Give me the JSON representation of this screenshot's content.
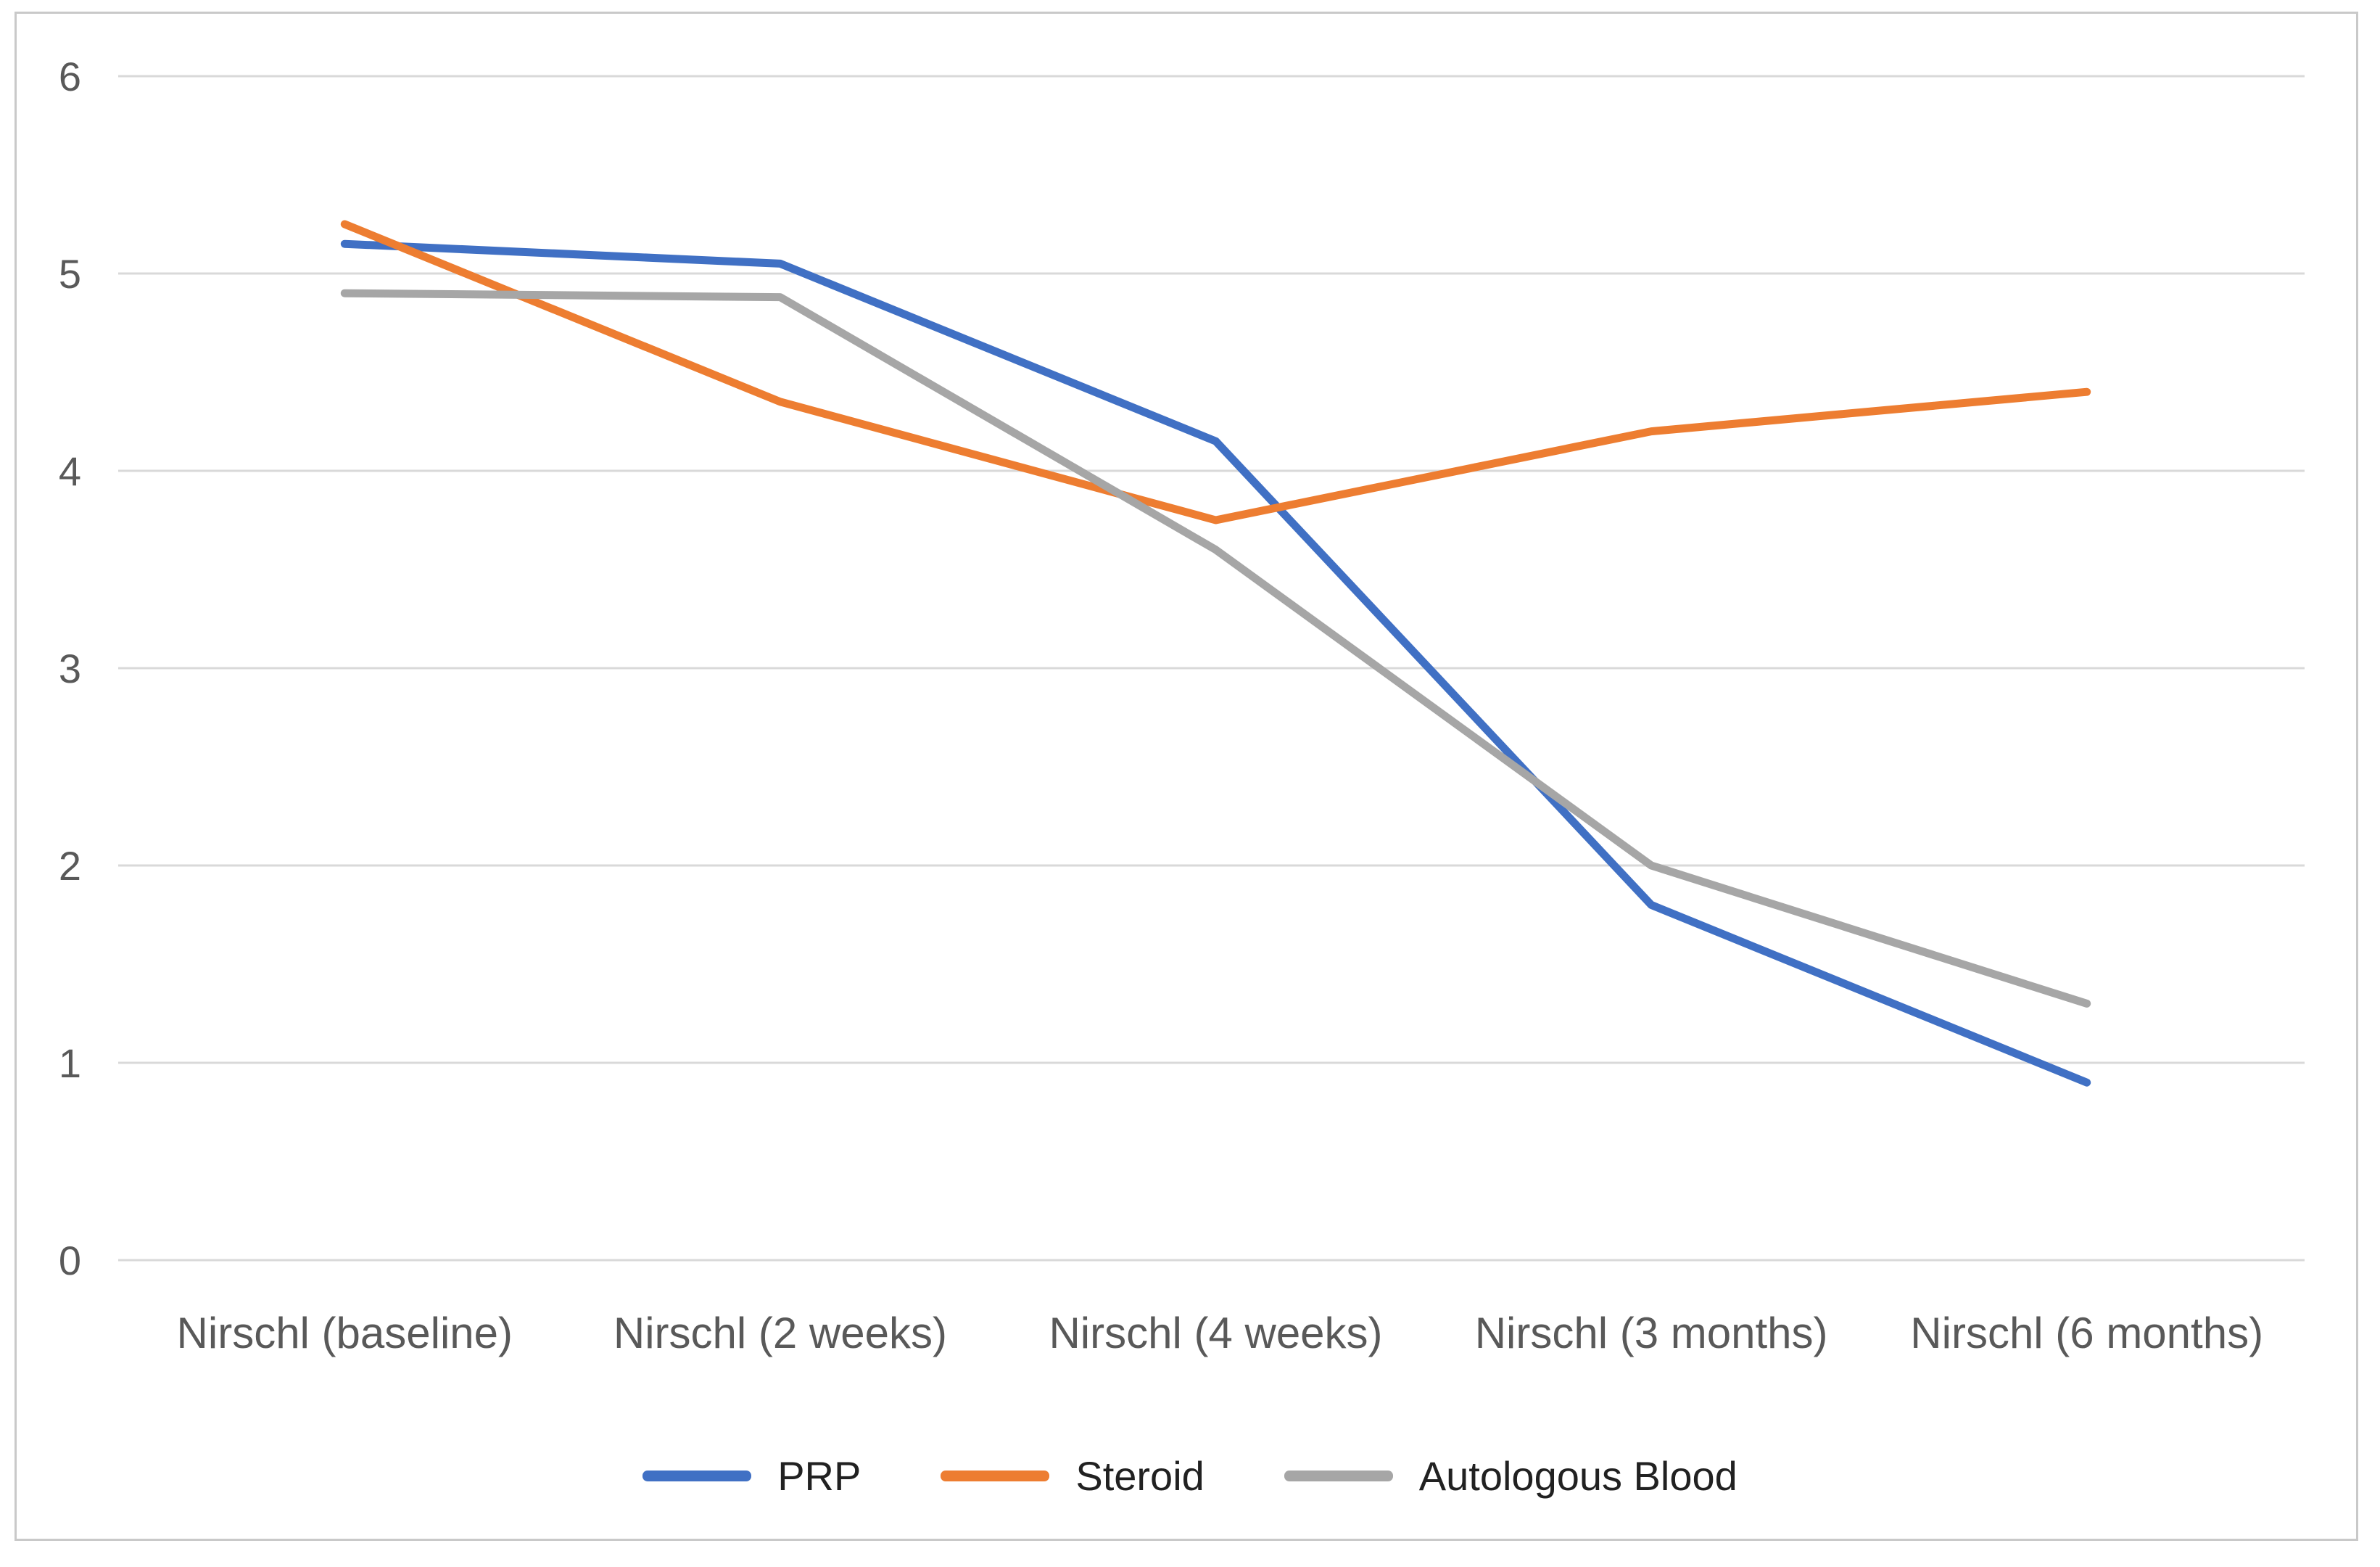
{
  "chart_data": {
    "type": "line",
    "title": "",
    "xlabel": "",
    "ylabel": "",
    "categories": [
      "Nirschl (baseline)",
      "Nirschl (2 weeks)",
      "Nirschl (4 weeks)",
      "Nirschl (3 months)",
      "Nirschl (6 months)"
    ],
    "series": [
      {
        "name": "PRP",
        "color": "#4070c4",
        "values": [
          5.15,
          5.05,
          4.15,
          1.8,
          0.9
        ]
      },
      {
        "name": "Steroid",
        "color": "#ed7d31",
        "values": [
          5.25,
          4.35,
          3.75,
          4.2,
          4.4
        ]
      },
      {
        "name": "Autologous Blood",
        "color": "#a6a6a6",
        "values": [
          4.9,
          4.88,
          3.6,
          2.0,
          1.3
        ]
      }
    ],
    "ylim": [
      0,
      6
    ],
    "yticks": [
      0,
      1,
      2,
      3,
      4,
      5,
      6
    ],
    "grid": true,
    "legend_position": "bottom"
  },
  "colors": {
    "gridline": "#d9d9d9",
    "frame_border": "#c9c9c9",
    "axis_label": "#595959",
    "legend_text": "#212121",
    "background": "#ffffff"
  }
}
